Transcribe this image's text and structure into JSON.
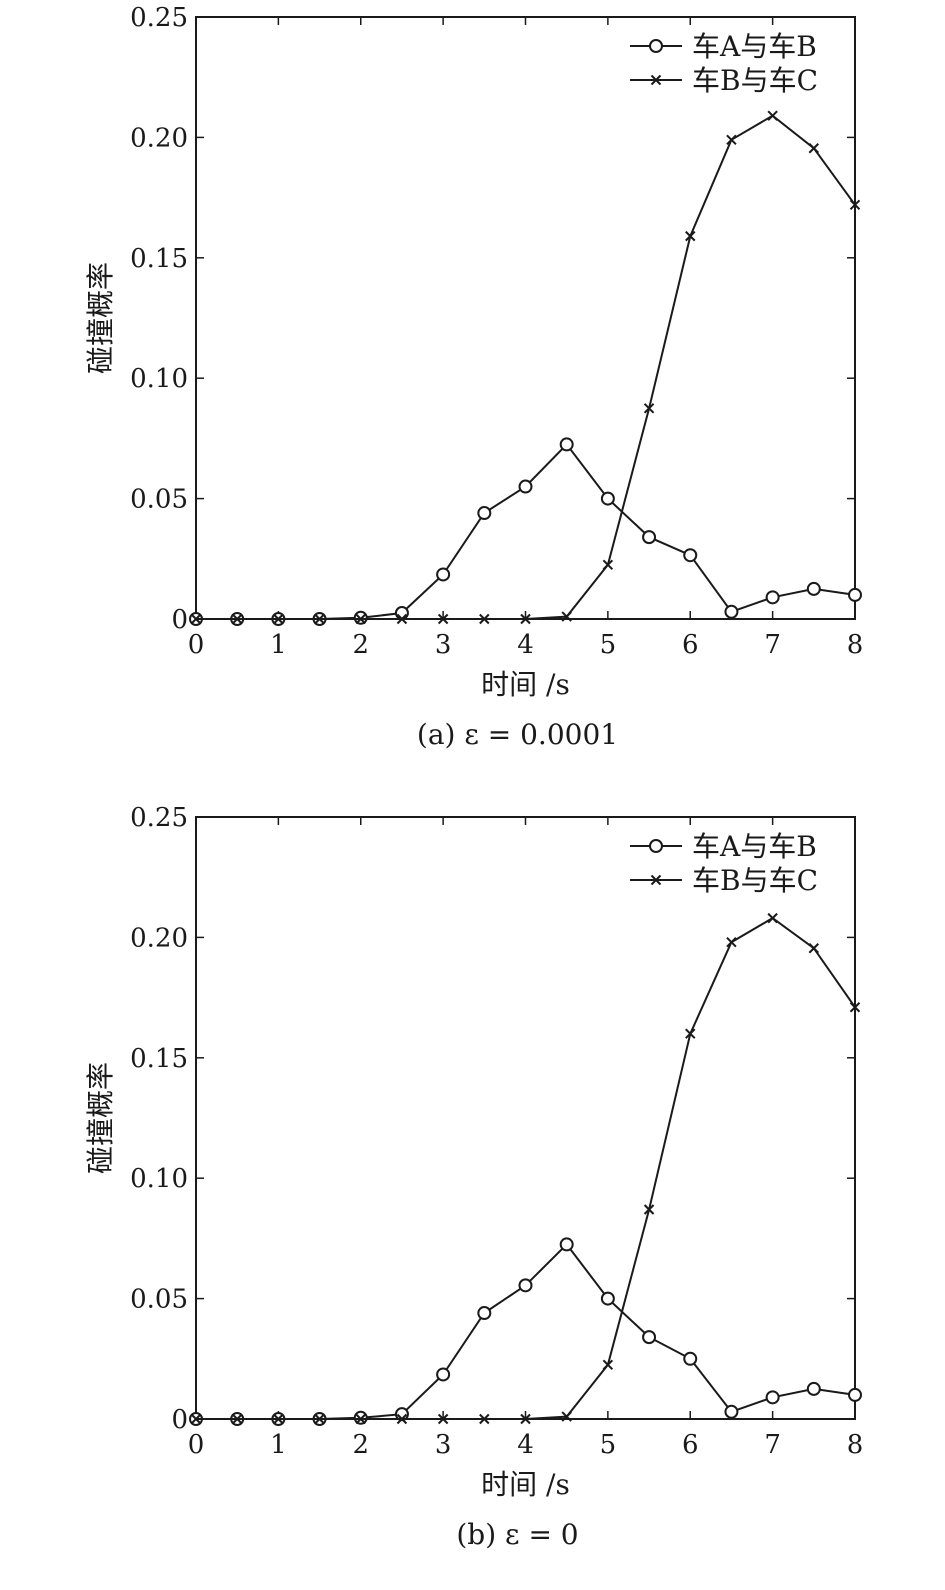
{
  "chart_data": [
    {
      "type": "line",
      "caption": "(a) ε = 0.0001",
      "xlabel": "时间  /s",
      "ylabel": "碰撞概率",
      "xlim": [
        0,
        8
      ],
      "ylim": [
        0,
        0.25
      ],
      "xticks": [
        0,
        1,
        2,
        3,
        4,
        5,
        6,
        7,
        8
      ],
      "yticks": [
        0,
        0.05,
        0.1,
        0.15,
        0.2,
        0.25
      ],
      "ytick_labels": [
        "0",
        "0.05",
        "0.10",
        "0.15",
        "0.20",
        "0.25"
      ],
      "legend_position": "top-right",
      "grid": false,
      "x": [
        0,
        0.5,
        1,
        1.5,
        2,
        2.5,
        3,
        3.5,
        4,
        4.5,
        5,
        5.5,
        6,
        6.5,
        7,
        7.5,
        8
      ],
      "series": [
        {
          "name": "车A与车B",
          "marker": "circle",
          "values": [
            0,
            0,
            0,
            0,
            0.0005,
            0.0025,
            0.0185,
            0.044,
            0.055,
            0.0725,
            0.05,
            0.034,
            0.0265,
            0.003,
            0.009,
            0.0125,
            0.01
          ]
        },
        {
          "name": "车B与车C",
          "marker": "x",
          "values": [
            0,
            0,
            0,
            0,
            0,
            0,
            0,
            0,
            0,
            0.001,
            0.0225,
            0.0875,
            0.159,
            0.199,
            0.209,
            0.1955,
            0.172
          ]
        }
      ]
    },
    {
      "type": "line",
      "caption": "(b) ε = 0",
      "xlabel": "时间  /s",
      "ylabel": "碰撞概率",
      "xlim": [
        0,
        8
      ],
      "ylim": [
        0,
        0.25
      ],
      "xticks": [
        0,
        1,
        2,
        3,
        4,
        5,
        6,
        7,
        8
      ],
      "yticks": [
        0,
        0.05,
        0.1,
        0.15,
        0.2,
        0.25
      ],
      "ytick_labels": [
        "0",
        "0.05",
        "0.10",
        "0.15",
        "0.20",
        "0.25"
      ],
      "legend_position": "top-right",
      "grid": false,
      "x": [
        0,
        0.5,
        1,
        1.5,
        2,
        2.5,
        3,
        3.5,
        4,
        4.5,
        5,
        5.5,
        6,
        6.5,
        7,
        7.5,
        8
      ],
      "series": [
        {
          "name": "车A与车B",
          "marker": "circle",
          "values": [
            0,
            0,
            0,
            0,
            0.0005,
            0.002,
            0.0185,
            0.044,
            0.0555,
            0.0725,
            0.05,
            0.034,
            0.025,
            0.003,
            0.009,
            0.0125,
            0.01
          ]
        },
        {
          "name": "车B与车C",
          "marker": "x",
          "values": [
            0,
            0,
            0,
            0,
            0,
            0,
            0,
            0,
            0,
            0.001,
            0.0225,
            0.087,
            0.16,
            0.198,
            0.208,
            0.1955,
            0.171
          ]
        }
      ]
    }
  ]
}
